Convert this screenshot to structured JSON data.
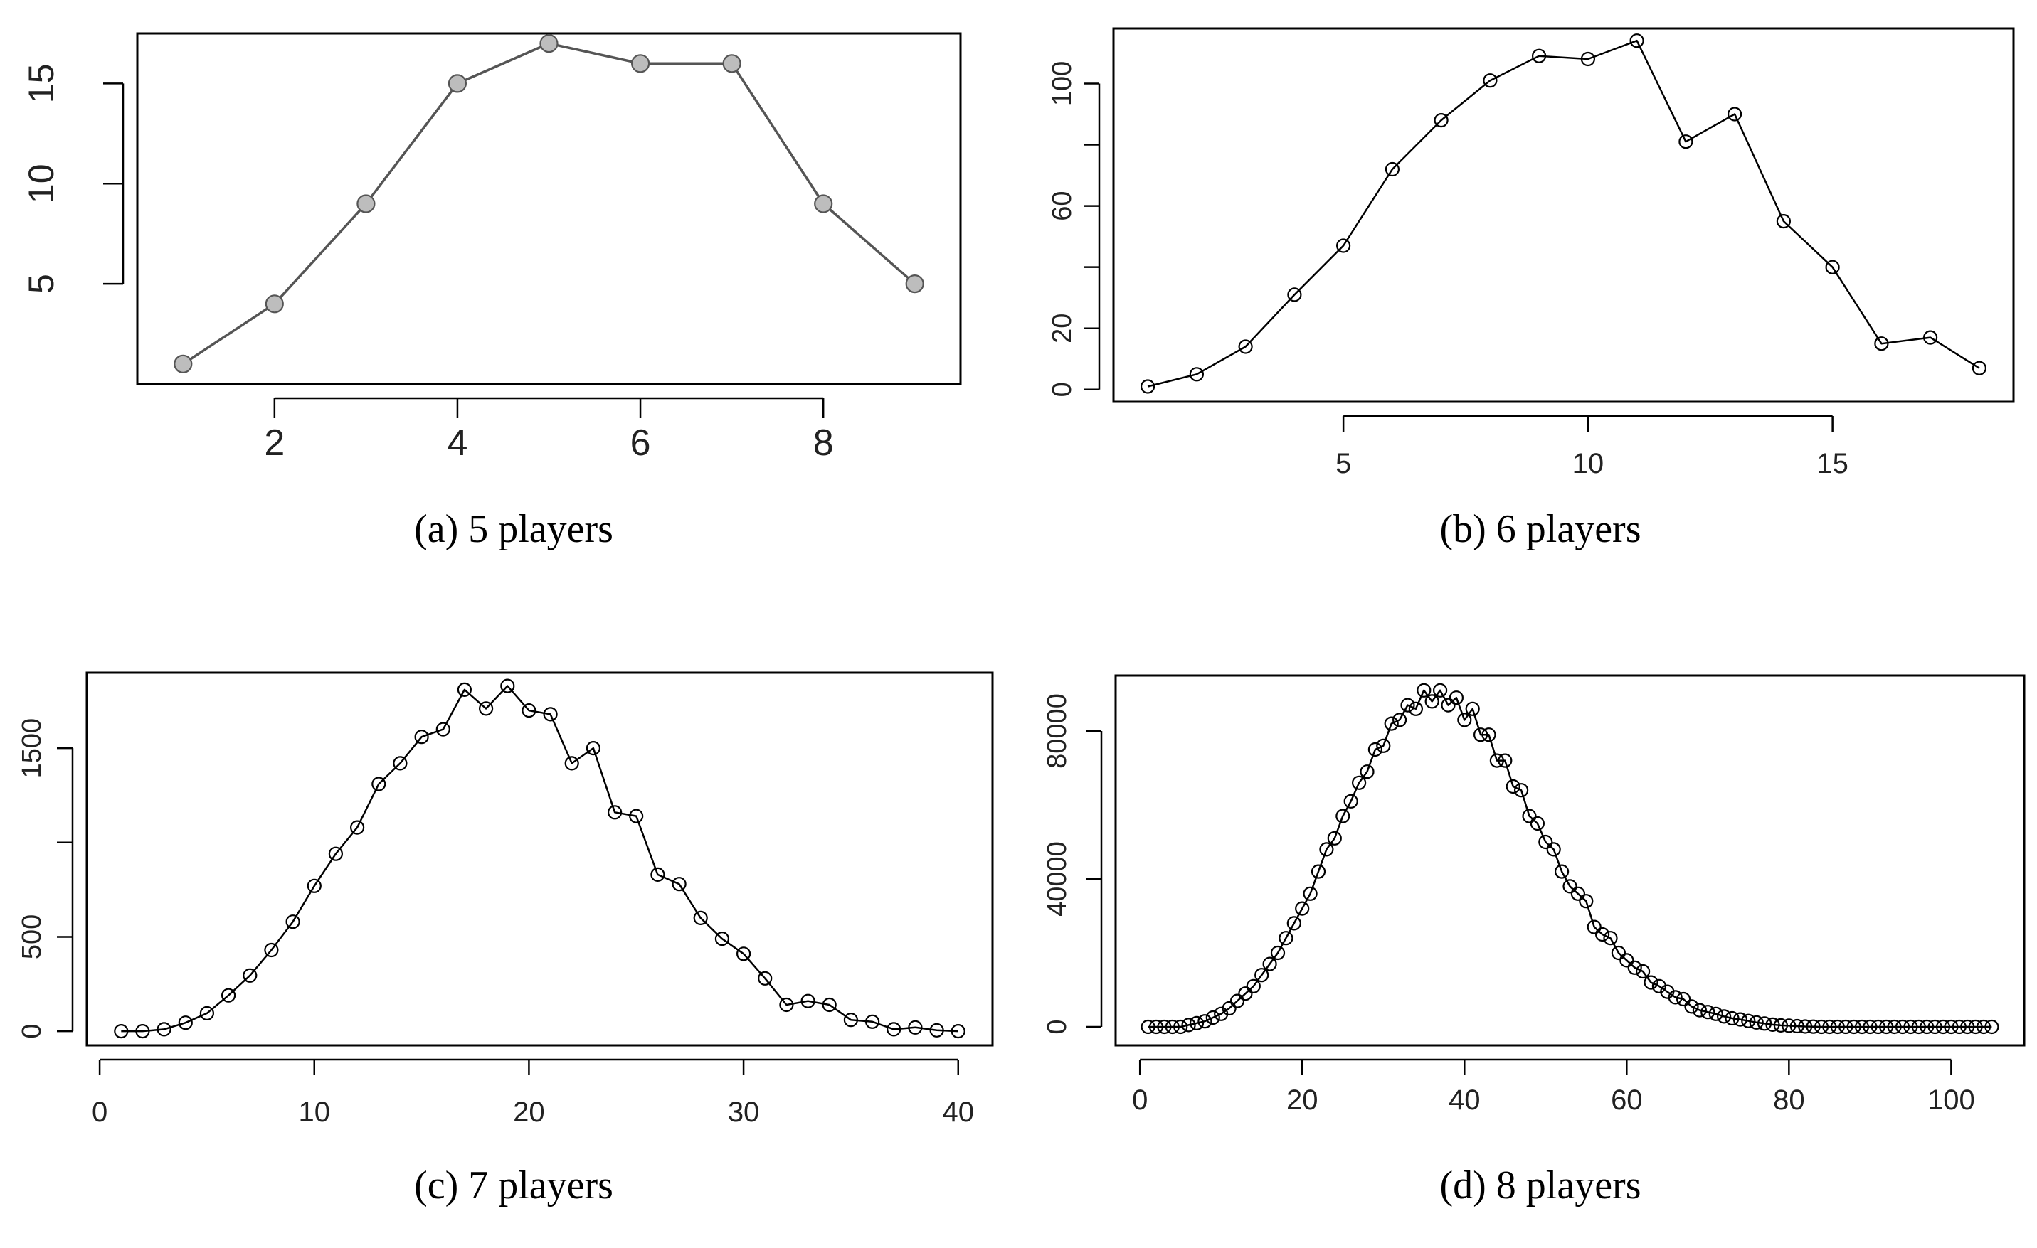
{
  "chart_data": [
    {
      "type": "line",
      "caption": "(a)  5 players",
      "x": [
        1,
        2,
        3,
        4,
        5,
        6,
        7,
        8,
        9
      ],
      "series": [
        {
          "values": [
            1,
            4,
            9,
            15,
            17,
            16,
            16,
            9,
            5
          ]
        }
      ],
      "xlim": [
        0.5,
        9.5
      ],
      "ylim": [
        0,
        17.5
      ],
      "xticks": [
        2,
        4,
        6,
        8
      ],
      "yticks": [
        5,
        10,
        15
      ],
      "xtick_labels": [
        "2",
        "4",
        "6",
        "8"
      ],
      "ytick_labels": [
        "5",
        "10",
        "15"
      ],
      "line_color": "#555555",
      "marker_color": "#555555",
      "marker_fill": "#bdbdbd"
    },
    {
      "type": "line",
      "caption": "(b)  6 players",
      "x": [
        1,
        2,
        3,
        4,
        5,
        6,
        7,
        8,
        9,
        10,
        11,
        12,
        13,
        14,
        15,
        16,
        17,
        18
      ],
      "series": [
        {
          "values": [
            1,
            5,
            14,
            31,
            47,
            72,
            88,
            101,
            109,
            108,
            114,
            81,
            90,
            55,
            40,
            15,
            17,
            7
          ]
        }
      ],
      "xlim": [
        0.3,
        18.7
      ],
      "ylim": [
        -4,
        118
      ],
      "xticks": [
        5,
        10,
        15
      ],
      "yticks": [
        0,
        20,
        40,
        60,
        80,
        100
      ],
      "xtick_labels": [
        "5",
        "10",
        "15"
      ],
      "ytick_labels": [
        "0",
        "20",
        "",
        "60",
        "",
        "100"
      ],
      "line_color": "#000000",
      "marker_color": "#000000",
      "marker_fill": "none"
    },
    {
      "type": "line",
      "caption": "(c)  7 players",
      "x": [
        1,
        2,
        3,
        4,
        5,
        6,
        7,
        8,
        9,
        10,
        11,
        12,
        13,
        14,
        15,
        16,
        17,
        18,
        19,
        20,
        21,
        22,
        23,
        24,
        25,
        26,
        27,
        28,
        29,
        30,
        31,
        32,
        33,
        34,
        35,
        36,
        37,
        38,
        39,
        40
      ],
      "series": [
        {
          "values": [
            0,
            0,
            10,
            45,
            95,
            190,
            295,
            430,
            580,
            770,
            940,
            1080,
            1310,
            1420,
            1560,
            1600,
            1810,
            1710,
            1830,
            1700,
            1680,
            1420,
            1500,
            1160,
            1140,
            830,
            780,
            600,
            490,
            410,
            280,
            140,
            160,
            140,
            60,
            50,
            10,
            20,
            5,
            0
          ]
        }
      ],
      "xlim": [
        -0.6,
        41.6
      ],
      "ylim": [
        -75,
        1900
      ],
      "xticks": [
        0,
        10,
        20,
        30,
        40
      ],
      "yticks": [
        0,
        500,
        1000,
        1500
      ],
      "xtick_labels": [
        "0",
        "10",
        "20",
        "30",
        "40"
      ],
      "ytick_labels": [
        "0",
        "500",
        "",
        "1500"
      ],
      "line_color": "#000000",
      "marker_color": "#000000",
      "marker_fill": "none"
    },
    {
      "type": "line",
      "caption": "(d)  8 players",
      "x": [
        1,
        2,
        3,
        4,
        5,
        6,
        7,
        8,
        9,
        10,
        11,
        12,
        13,
        14,
        15,
        16,
        17,
        18,
        19,
        20,
        21,
        22,
        23,
        24,
        25,
        26,
        27,
        28,
        29,
        30,
        31,
        32,
        33,
        34,
        35,
        36,
        37,
        38,
        39,
        40,
        41,
        42,
        43,
        44,
        45,
        46,
        47,
        48,
        49,
        50,
        51,
        52,
        53,
        54,
        55,
        56,
        57,
        58,
        59,
        60,
        61,
        62,
        63,
        64,
        65,
        66,
        67,
        68,
        69,
        70,
        71,
        72,
        73,
        74,
        75,
        76,
        77,
        78,
        79,
        80,
        81,
        82,
        83,
        84,
        85,
        86,
        87,
        88,
        89,
        90,
        91,
        92,
        93,
        94,
        95,
        96,
        97,
        98,
        99,
        100,
        101,
        102,
        103,
        104,
        105
      ],
      "series": [
        {
          "values": [
            0,
            0,
            0,
            0,
            0,
            500,
            1000,
            1500,
            2500,
            3500,
            5000,
            7000,
            9000,
            11000,
            14000,
            17000,
            20000,
            24000,
            28000,
            32000,
            36000,
            42000,
            48000,
            51000,
            57000,
            61000,
            66000,
            69000,
            75000,
            76000,
            82000,
            83000,
            87000,
            86000,
            91000,
            88000,
            91000,
            87000,
            89000,
            83000,
            86000,
            79000,
            79000,
            72000,
            72000,
            65000,
            64000,
            57000,
            55000,
            50000,
            48000,
            42000,
            38000,
            36000,
            34000,
            27000,
            25000,
            24000,
            20000,
            18000,
            16000,
            15000,
            12000,
            11000,
            9500,
            8000,
            7500,
            5500,
            4500,
            4000,
            3500,
            2800,
            2300,
            2000,
            1600,
            1200,
            900,
            600,
            400,
            300,
            200,
            100,
            50,
            0,
            0,
            0,
            0,
            0,
            0,
            0,
            0,
            0,
            0,
            0,
            0,
            0,
            0,
            0,
            0,
            0,
            0,
            0,
            0,
            0,
            0
          ]
        }
      ],
      "xlim": [
        -3,
        109
      ],
      "ylim": [
        -5000,
        95000
      ],
      "xticks": [
        0,
        20,
        40,
        60,
        80,
        100
      ],
      "yticks": [
        0,
        40000,
        80000
      ],
      "xtick_labels": [
        "0",
        "20",
        "40",
        "60",
        "80",
        "100"
      ],
      "ytick_labels": [
        "0",
        "40000",
        "80000"
      ],
      "line_color": "#000000",
      "marker_color": "#000000",
      "marker_fill": "none"
    }
  ]
}
